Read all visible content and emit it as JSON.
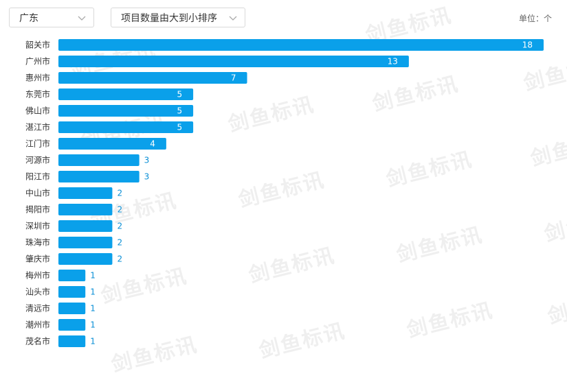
{
  "filters": {
    "region": "广东",
    "sort": "项目数量由大到小排序"
  },
  "unit_label": "单位：个",
  "watermark": "剑鱼标讯",
  "colors": {
    "bar": "#0aa0ea",
    "label_outside": "#0a8fd6",
    "label_inside": "#ffffff"
  },
  "chart_data": {
    "type": "bar",
    "orientation": "horizontal",
    "categories": [
      "韶关市",
      "广州市",
      "惠州市",
      "东莞市",
      "佛山市",
      "湛江市",
      "江门市",
      "河源市",
      "阳江市",
      "中山市",
      "揭阳市",
      "深圳市",
      "珠海市",
      "肇庆市",
      "梅州市",
      "汕头市",
      "清远市",
      "潮州市",
      "茂名市"
    ],
    "values": [
      18,
      13,
      7,
      5,
      5,
      5,
      4,
      3,
      3,
      2,
      2,
      2,
      2,
      2,
      1,
      1,
      1,
      1,
      1
    ],
    "xlim": [
      0,
      18
    ],
    "grid": false,
    "legend": "none"
  }
}
